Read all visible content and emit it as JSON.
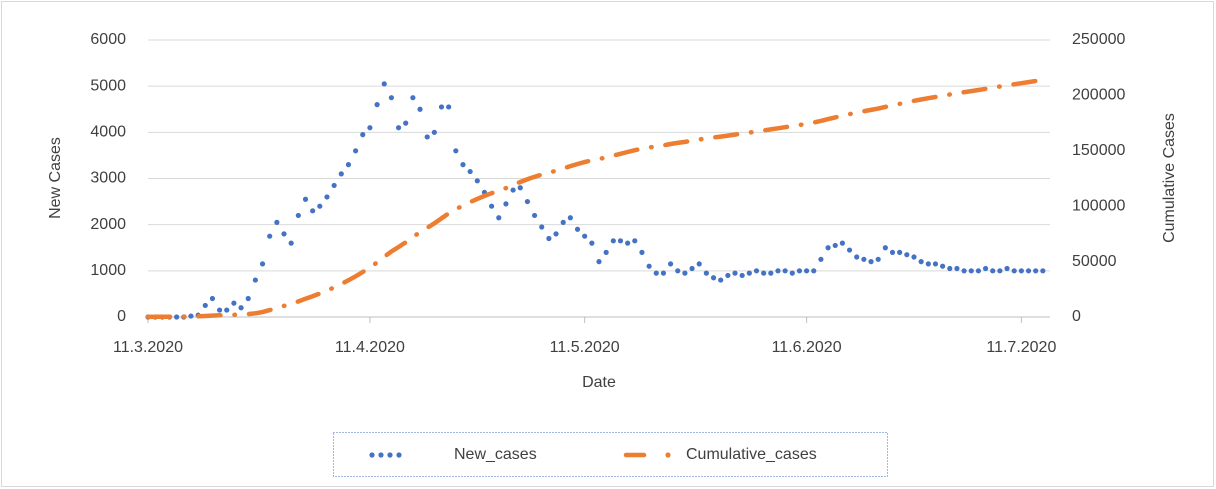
{
  "chart_data": {
    "type": "line",
    "x_label": "Date",
    "y_label": "New Cases",
    "y2_label": "Cumulative Cases",
    "x": [
      "11.3.2020",
      "12.3.2020",
      "13.3.2020",
      "14.3.2020",
      "15.3.2020",
      "16.3.2020",
      "17.3.2020",
      "18.3.2020",
      "19.3.2020",
      "20.3.2020",
      "21.3.2020",
      "22.3.2020",
      "23.3.2020",
      "24.3.2020",
      "25.3.2020",
      "26.3.2020",
      "27.3.2020",
      "28.3.2020",
      "29.3.2020",
      "30.3.2020",
      "31.3.2020",
      "1.4.2020",
      "2.4.2020",
      "3.4.2020",
      "4.4.2020",
      "5.4.2020",
      "6.4.2020",
      "7.4.2020",
      "8.4.2020",
      "9.4.2020",
      "10.4.2020",
      "11.4.2020",
      "12.4.2020",
      "13.4.2020",
      "14.4.2020",
      "15.4.2020",
      "16.4.2020",
      "17.4.2020",
      "18.4.2020",
      "19.4.2020",
      "20.4.2020",
      "21.4.2020",
      "22.4.2020",
      "23.4.2020",
      "24.4.2020",
      "25.4.2020",
      "26.4.2020",
      "27.4.2020",
      "28.4.2020",
      "29.4.2020",
      "30.4.2020",
      "1.5.2020",
      "2.5.2020",
      "3.5.2020",
      "4.5.2020",
      "5.5.2020",
      "6.5.2020",
      "7.5.2020",
      "8.5.2020",
      "9.5.2020",
      "10.5.2020",
      "11.5.2020",
      "12.5.2020",
      "13.5.2020",
      "14.5.2020",
      "15.5.2020",
      "16.5.2020",
      "17.5.2020",
      "18.5.2020",
      "19.5.2020",
      "20.5.2020",
      "21.5.2020",
      "22.5.2020",
      "23.5.2020",
      "24.5.2020",
      "25.5.2020",
      "26.5.2020",
      "27.5.2020",
      "28.5.2020",
      "29.5.2020",
      "30.5.2020",
      "31.5.2020",
      "1.6.2020",
      "2.6.2020",
      "3.6.2020",
      "4.6.2020",
      "5.6.2020",
      "6.6.2020",
      "7.6.2020",
      "8.6.2020",
      "9.6.2020",
      "10.6.2020",
      "11.6.2020",
      "12.6.2020",
      "13.6.2020",
      "14.6.2020",
      "15.6.2020",
      "16.6.2020",
      "17.6.2020",
      "18.6.2020",
      "19.6.2020",
      "20.6.2020",
      "21.6.2020",
      "22.6.2020",
      "23.6.2020",
      "24.6.2020",
      "25.6.2020",
      "26.6.2020",
      "27.6.2020",
      "28.6.2020",
      "29.6.2020",
      "30.6.2020",
      "1.7.2020",
      "2.7.2020",
      "3.7.2020",
      "4.7.2020",
      "5.7.2020",
      "6.7.2020",
      "7.7.2020",
      "8.7.2020",
      "9.7.2020",
      "10.7.2020",
      "11.7.2020",
      "12.7.2020",
      "13.7.2020",
      "14.7.2020"
    ],
    "series": [
      {
        "name": "New_cases",
        "color": "#4472c4",
        "axis": "y",
        "values": [
          0,
          0,
          0,
          0,
          0,
          0,
          20,
          40,
          250,
          400,
          150,
          150,
          300,
          200,
          400,
          800,
          1150,
          1750,
          2050,
          1800,
          1600,
          2200,
          2550,
          2300,
          2400,
          2600,
          2850,
          3100,
          3300,
          3600,
          3950,
          4100,
          4600,
          5050,
          4750,
          4100,
          4200,
          4750,
          4500,
          3900,
          4000,
          4550,
          4550,
          3600,
          3300,
          3150,
          2950,
          2700,
          2400,
          2150,
          2450,
          2750,
          2800,
          2500,
          2200,
          1950,
          1700,
          1800,
          2050,
          2150,
          1900,
          1750,
          1600,
          1200,
          1400,
          1650,
          1650,
          1600,
          1650,
          1400,
          1100,
          950,
          950,
          1150,
          1000,
          950,
          1050,
          1150,
          950,
          850,
          800,
          900,
          950,
          900,
          950,
          1000,
          950,
          950,
          1000,
          1000,
          950,
          1000,
          1000,
          1000,
          1250,
          1500,
          1550,
          1600,
          1450,
          1300,
          1250,
          1200,
          1250,
          1500,
          1400,
          1400,
          1350,
          1300,
          1200,
          1150,
          1150,
          1100,
          1050,
          1050,
          1000,
          1000,
          1000,
          1050,
          1000,
          1000,
          1050,
          1000,
          1000,
          1000,
          1000,
          1000
        ]
      },
      {
        "name": "Cumulative_cases",
        "color": "#ed7d31",
        "axis": "y2",
        "values": [
          100,
          150,
          200,
          250,
          300,
          400,
          500,
          600,
          900,
          1300,
          1500,
          1700,
          2000,
          2200,
          2600,
          3300,
          4400,
          6200,
          8200,
          10000,
          11800,
          14000,
          16500,
          18800,
          21200,
          23800,
          26700,
          29800,
          33100,
          36700,
          40600,
          44700,
          49300,
          54300,
          59100,
          63200,
          67400,
          72100,
          76600,
          80500,
          84500,
          89000,
          93600,
          97200,
          100500,
          103700,
          106600,
          109300,
          111700,
          113900,
          116300,
          119000,
          121800,
          124300,
          126500,
          128500,
          130200,
          132000,
          134000,
          136200,
          138100,
          139800,
          141400,
          142600,
          144000,
          145700,
          147300,
          148900,
          150500,
          151900,
          153000,
          154000,
          154900,
          156100,
          157100,
          158000,
          159100,
          160200,
          161200,
          162000,
          162800,
          163700,
          164600,
          165500,
          166400,
          167400,
          168400,
          169300,
          170300,
          171300,
          172300,
          173300,
          174300,
          175500,
          177000,
          178600,
          180100,
          181700,
          183100,
          184400,
          185700,
          186900,
          188100,
          189600,
          191000,
          192400,
          193800,
          195100,
          196300,
          197500,
          198600,
          199700,
          200800,
          201800,
          202900,
          203900,
          204900,
          205900,
          207000,
          208000,
          209000,
          210000,
          211000,
          212000,
          213000,
          214000
        ]
      }
    ],
    "xlim": [
      "11.3.2020",
      "15.7.2020"
    ],
    "xticks": [
      "11.3.2020",
      "11.4.2020",
      "11.5.2020",
      "11.6.2020",
      "11.7.2020"
    ],
    "ylim": [
      0,
      6000
    ],
    "yticks": [
      0,
      1000,
      2000,
      3000,
      4000,
      5000,
      6000
    ],
    "y2lim": [
      0,
      250000
    ],
    "y2ticks": [
      0,
      50000,
      100000,
      150000,
      200000,
      250000
    ],
    "grid": true,
    "legend": "bottom"
  }
}
